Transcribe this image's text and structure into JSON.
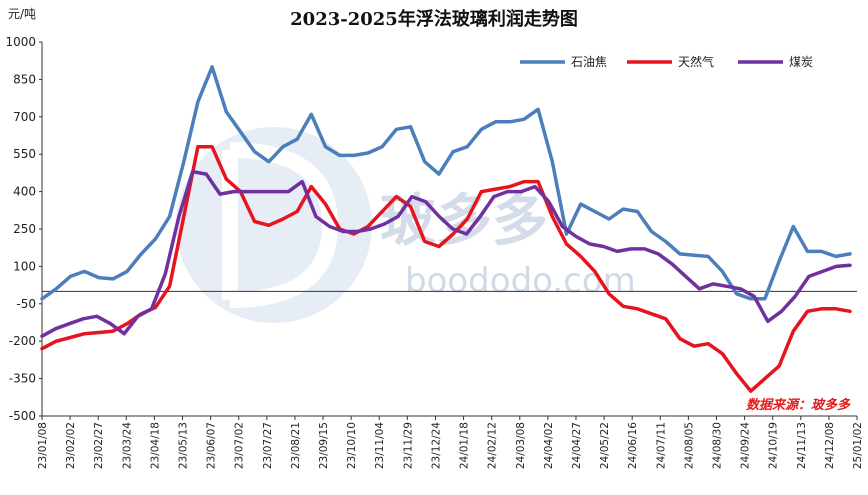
{
  "chart_data": {
    "type": "line",
    "title": "2023-2025年浮法玻璃利润走势图",
    "ylabel": "元/吨",
    "ylim": [
      -500,
      1000
    ],
    "yticks": [
      "1000",
      "850",
      "700",
      "550",
      "400",
      "250",
      "100",
      "-50",
      "-200",
      "-350",
      "-500"
    ],
    "ytick_values": [
      1000,
      850,
      700,
      550,
      400,
      250,
      100,
      -50,
      -200,
      -350,
      -500
    ],
    "xtick_labels": [
      "23/01/08",
      "23/02/02",
      "23/02/27",
      "23/03/24",
      "23/04/18",
      "23/05/13",
      "23/06/07",
      "23/07/02",
      "23/07/27",
      "23/08/21",
      "23/09/15",
      "23/10/10",
      "23/11/04",
      "23/11/29",
      "23/12/24",
      "24/01/18",
      "24/02/12",
      "24/03/08",
      "24/04/02",
      "24/04/27",
      "24/05/22",
      "24/06/16",
      "24/07/11",
      "24/08/05",
      "24/08/30",
      "24/09/24",
      "24/10/19",
      "24/11/13",
      "24/12/08",
      "25/01/02"
    ],
    "legend_position": "top-right",
    "grid": false,
    "source_note": "数据来源：玻多多",
    "watermark": [
      "玻多多",
      "boododo.com"
    ],
    "series": [
      {
        "name": "石油焦",
        "color": "#4a7fbb",
        "values": [
          -30,
          10,
          60,
          80,
          55,
          50,
          80,
          150,
          210,
          300,
          520,
          760,
          900,
          720,
          640,
          560,
          520,
          580,
          610,
          710,
          580,
          545,
          545,
          555,
          580,
          650,
          660,
          520,
          470,
          560,
          580,
          650,
          680,
          680,
          690,
          730,
          520,
          230,
          350,
          320,
          290,
          330,
          320,
          240,
          200,
          150,
          145,
          140,
          80,
          -10,
          -30,
          -30,
          120,
          260,
          160,
          160,
          140,
          150
        ]
      },
      {
        "name": "天然气",
        "color": "#e6141e",
        "values": [
          -230,
          -200,
          -185,
          -170,
          -165,
          -160,
          -130,
          -90,
          -65,
          20,
          300,
          580,
          580,
          450,
          400,
          280,
          265,
          290,
          320,
          420,
          350,
          250,
          230,
          260,
          320,
          380,
          340,
          200,
          180,
          230,
          290,
          400,
          410,
          420,
          440,
          440,
          300,
          190,
          140,
          80,
          -10,
          -60,
          -70,
          -90,
          -110,
          -190,
          -220,
          -210,
          -250,
          -330,
          -400,
          -350,
          -300,
          -160,
          -80,
          -70,
          -70,
          -80
        ]
      },
      {
        "name": "煤炭",
        "color": "#7030a0",
        "values": [
          -180,
          -150,
          -130,
          -110,
          -100,
          -130,
          -170,
          -100,
          -70,
          70,
          300,
          480,
          470,
          390,
          400,
          400,
          400,
          400,
          400,
          440,
          300,
          260,
          240,
          240,
          250,
          270,
          300,
          380,
          360,
          300,
          250,
          230,
          300,
          380,
          400,
          400,
          420,
          360,
          260,
          220,
          190,
          180,
          160,
          170,
          170,
          150,
          110,
          60,
          10,
          30,
          20,
          10,
          -20,
          -120,
          -80,
          -20,
          60,
          80,
          100,
          105
        ]
      }
    ]
  }
}
